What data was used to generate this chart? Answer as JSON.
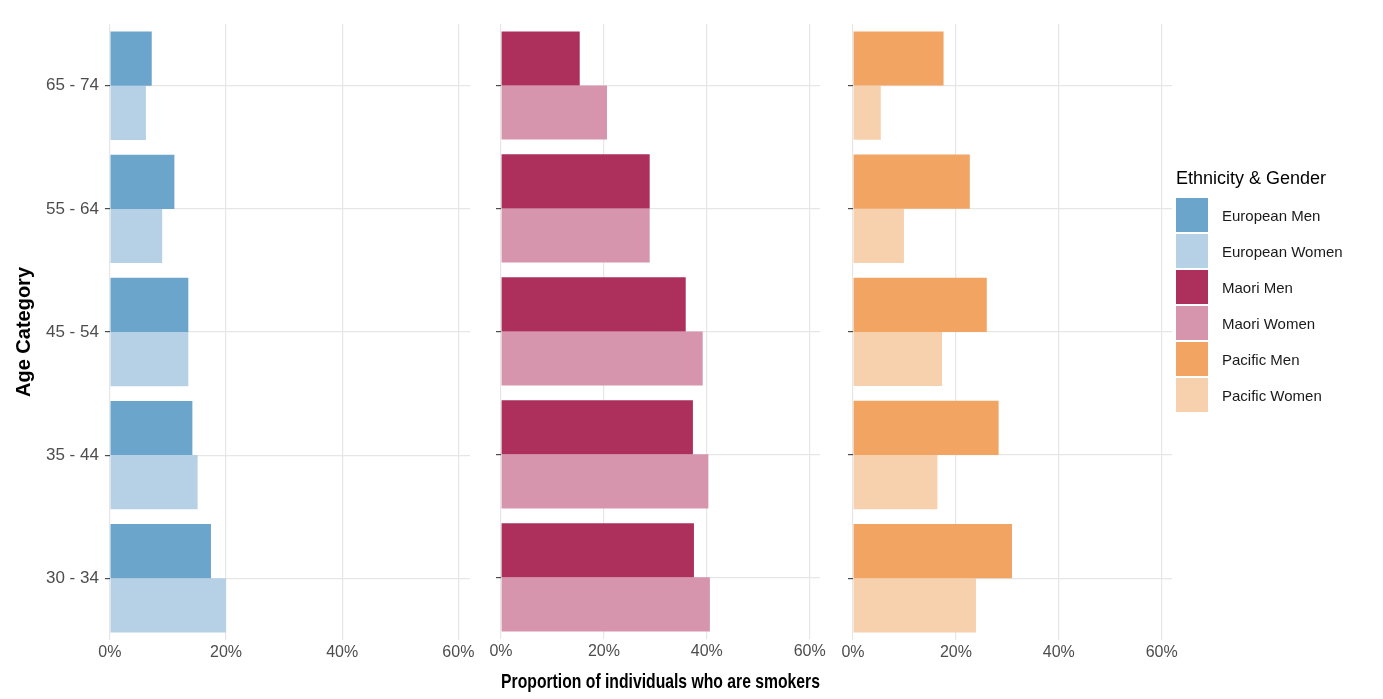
{
  "chart_data": [
    {
      "type": "bar",
      "orientation": "horizontal",
      "ylabel": "Age Category",
      "categories": [
        "65 - 74",
        "55 - 64",
        "45 - 54",
        "35 - 44",
        "30 - 34"
      ],
      "xlim": [
        0,
        62
      ],
      "xticks": [
        {
          "value": 0,
          "label": "0%"
        },
        {
          "value": 20,
          "label": "20%"
        },
        {
          "value": 40,
          "label": "40%"
        },
        {
          "value": 60,
          "label": "60%"
        }
      ],
      "grid": true,
      "legend": "right",
      "series": [
        {
          "name": "European Men",
          "color": "#6ca5cc",
          "values": [
            7.2,
            11.1,
            13.5,
            14.2,
            17.4
          ]
        },
        {
          "name": "European Women",
          "color": "#b6d1e6",
          "values": [
            6.2,
            9.0,
            13.5,
            15.1,
            20.0
          ]
        }
      ]
    },
    {
      "type": "bar",
      "orientation": "horizontal",
      "xlabel": "Proportion of individuals who are smokers",
      "categories": [
        null,
        null,
        null,
        null,
        null
      ],
      "xlim": [
        0,
        62
      ],
      "xticks": [
        {
          "value": 0,
          "label": "0%"
        },
        {
          "value": 20,
          "label": "20%"
        },
        {
          "value": 40,
          "label": "40%"
        },
        {
          "value": 60,
          "label": "60%"
        }
      ],
      "grid": true,
      "legend": "right",
      "tick_labels": "x",
      "series": [
        {
          "name": "Maori Men",
          "color": "#ad2f5c",
          "values": [
            15.3,
            28.9,
            35.9,
            37.3,
            37.5
          ]
        },
        {
          "name": "Maori Women",
          "color": "#d795ad",
          "values": [
            20.6,
            28.9,
            39.2,
            40.3,
            40.6
          ]
        }
      ]
    },
    {
      "type": "bar",
      "orientation": "horizontal",
      "legend_title": "Ethnicity & Gender",
      "categories": [
        null,
        null,
        null,
        null,
        null
      ],
      "xlim": [
        0,
        62
      ],
      "xticks": [
        {
          "value": 0,
          "label": "0%"
        },
        {
          "value": 20,
          "label": "20%"
        },
        {
          "value": 40,
          "label": "40%"
        },
        {
          "value": 60,
          "label": "60%"
        }
      ],
      "grid": true,
      "legend": "right",
      "tick_labels": "x",
      "series": [
        {
          "name": "Pacific Men",
          "color": "#f2a462",
          "values": [
            17.6,
            22.7,
            26.0,
            28.3,
            30.9
          ]
        },
        {
          "name": "Pacific Women",
          "color": "#f7d0ae",
          "values": [
            5.4,
            9.9,
            17.3,
            16.4,
            23.9
          ]
        }
      ]
    }
  ]
}
